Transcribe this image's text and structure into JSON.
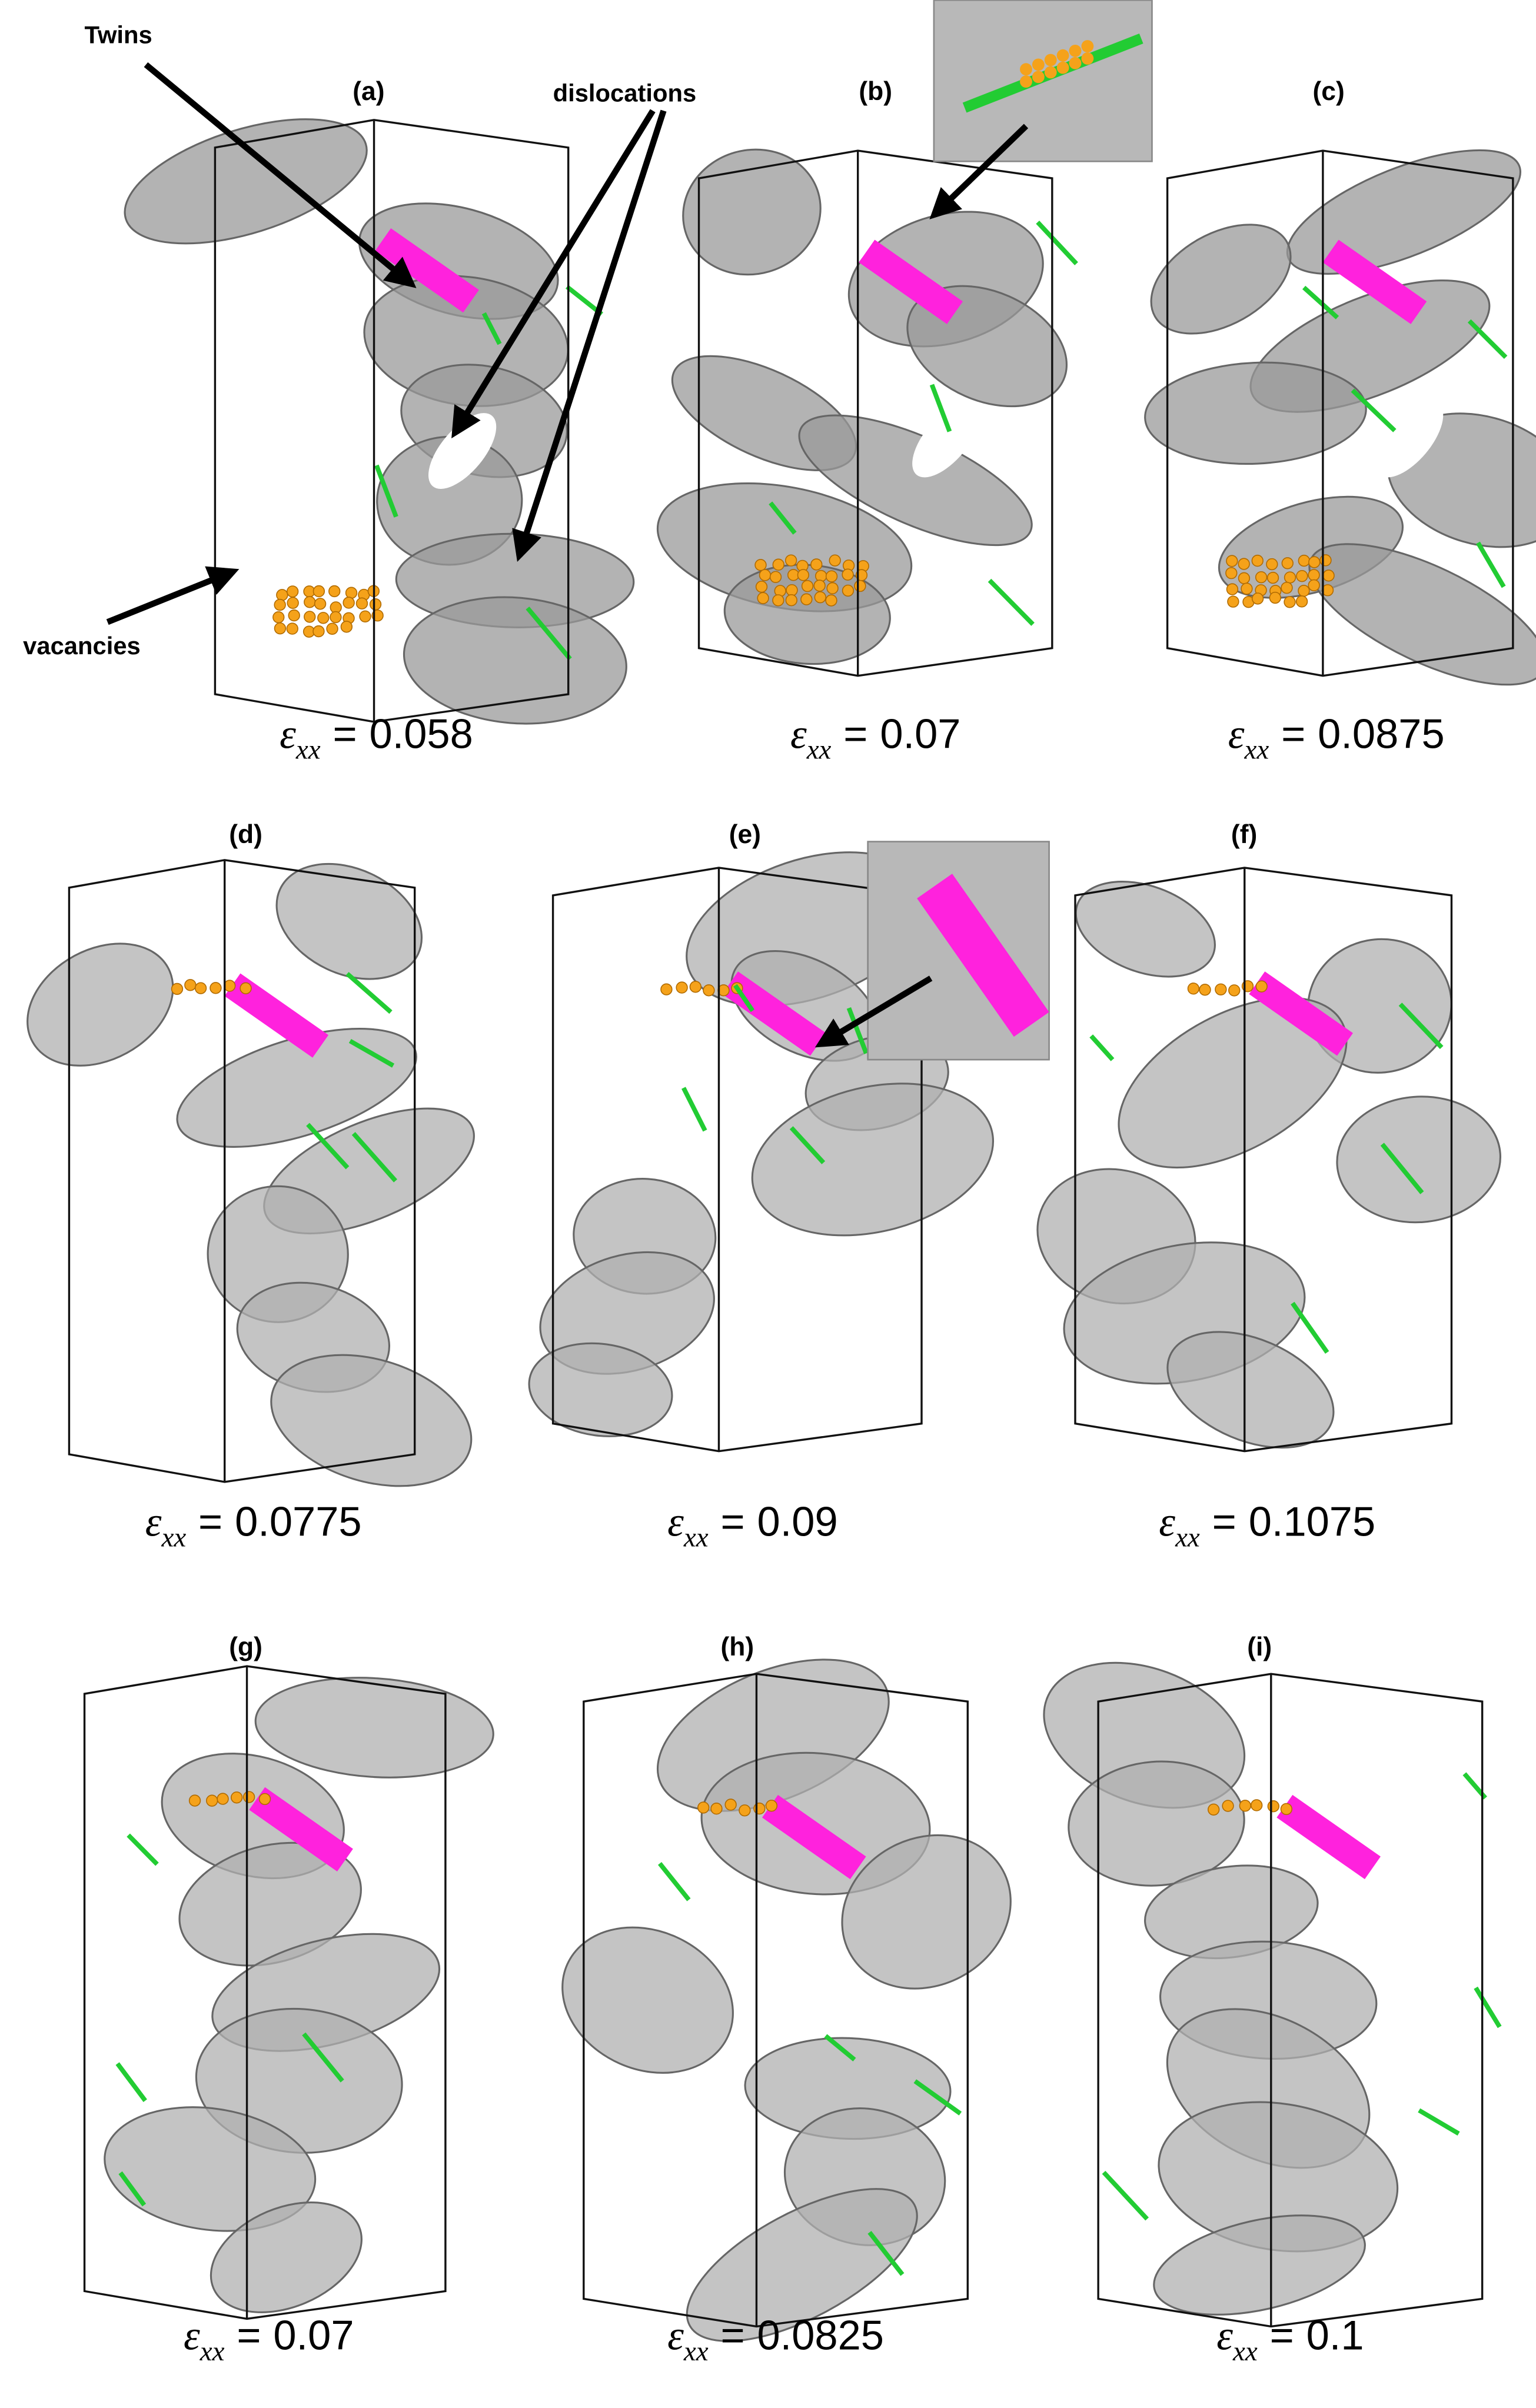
{
  "annotations": {
    "twins": "Twins",
    "dislocations": "dislocations",
    "vacancies": "vacancies"
  },
  "strain_label": {
    "symbol": "ε",
    "subscript": "xx",
    "relation": "="
  },
  "panels": [
    {
      "label": "(a)",
      "value": 0.058
    },
    {
      "label": "(b)",
      "value": 0.07
    },
    {
      "label": "(c)",
      "value": 0.0875
    },
    {
      "label": "(d)",
      "value": 0.0775
    },
    {
      "label": "(e)",
      "value": 0.09
    },
    {
      "label": "(f)",
      "value": 0.1075
    },
    {
      "label": "(g)",
      "value": 0.07
    },
    {
      "label": "(h)",
      "value": 0.0825
    },
    {
      "label": "(i)",
      "value": 0.1
    }
  ]
}
